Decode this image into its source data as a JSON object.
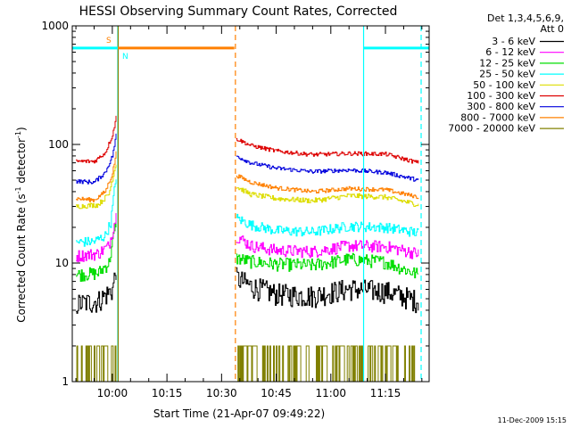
{
  "chart_data": {
    "type": "line",
    "title": "HESSI Observing Summary Count Rates, Corrected",
    "xlabel": "Start Time (21-Apr-07 09:49:22)",
    "ylabel_main": "Corrected Count Rate (s",
    "ylabel_sup1": "-1",
    "ylabel_mid": " detector",
    "ylabel_sup2": "-1",
    "ylabel_end": ")",
    "y_scale": "log",
    "ylim": [
      1,
      1000
    ],
    "xlim_minutes": [
      -11,
      87
    ],
    "x_ticks": [
      {
        "m": 0,
        "label": "10:00"
      },
      {
        "m": 15,
        "label": "10:15"
      },
      {
        "m": 30,
        "label": "10:30"
      },
      {
        "m": 45,
        "label": "10:45"
      },
      {
        "m": 60,
        "label": "11:00"
      },
      {
        "m": 75,
        "label": "11:15"
      }
    ],
    "y_ticks": [
      {
        "v": 1,
        "label": "1"
      },
      {
        "v": 10,
        "label": "10"
      },
      {
        "v": 100,
        "label": "100"
      },
      {
        "v": 1000,
        "label": "1000"
      }
    ],
    "legend": {
      "header1": "Det 1,3,4,5,6,9,",
      "header2": "Att 0",
      "placement": "right-outside"
    },
    "series": [
      {
        "name": "3 - 6 keV",
        "color": "#000000",
        "seg1": [
          [
            -10,
            4.5
          ],
          [
            -4,
            4.8
          ],
          [
            0,
            6
          ],
          [
            1,
            9
          ]
        ],
        "seg2": [
          [
            34,
            7.5
          ],
          [
            38,
            6.4
          ],
          [
            45,
            5.5
          ],
          [
            55,
            5.3
          ],
          [
            65,
            6.1
          ],
          [
            75,
            5.8
          ],
          [
            84,
            4.8
          ]
        ],
        "noise": 0.22
      },
      {
        "name": "6 - 12 keV",
        "color": "#ff00ff",
        "seg1": [
          [
            -10,
            11.5
          ],
          [
            -4,
            12
          ],
          [
            -1,
            14
          ],
          [
            1,
            25
          ]
        ],
        "seg2": [
          [
            34,
            17
          ],
          [
            38,
            14
          ],
          [
            45,
            12.8
          ],
          [
            55,
            12.5
          ],
          [
            65,
            14
          ],
          [
            75,
            13.8
          ],
          [
            84,
            12
          ]
        ],
        "noise": 0.12
      },
      {
        "name": "12 - 25 keV",
        "color": "#00dd00",
        "seg1": [
          [
            -10,
            8
          ],
          [
            -4,
            8.2
          ],
          [
            -1,
            10
          ],
          [
            1,
            22
          ]
        ],
        "seg2": [
          [
            34,
            11
          ],
          [
            38,
            10.3
          ],
          [
            45,
            9.8
          ],
          [
            55,
            9.6
          ],
          [
            65,
            10.8
          ],
          [
            75,
            10.2
          ],
          [
            84,
            8
          ]
        ],
        "noise": 0.13
      },
      {
        "name": "25 - 50 keV",
        "color": "#00ffff",
        "seg1": [
          [
            -10,
            15
          ],
          [
            -5,
            15.2
          ],
          [
            -2,
            17
          ],
          [
            -0.5,
            22
          ],
          [
            1,
            55
          ]
        ],
        "seg2": [
          [
            34,
            24
          ],
          [
            38,
            21
          ],
          [
            45,
            18.8
          ],
          [
            55,
            18.3
          ],
          [
            65,
            20.5
          ],
          [
            75,
            20
          ],
          [
            84,
            18
          ]
        ],
        "noise": 0.1
      },
      {
        "name": "50 - 100 keV",
        "color": "#dddd00",
        "seg1": [
          [
            -10,
            30
          ],
          [
            -4,
            31
          ],
          [
            -1,
            38
          ],
          [
            1,
            70
          ]
        ],
        "seg2": [
          [
            34,
            44
          ],
          [
            38,
            38
          ],
          [
            45,
            35
          ],
          [
            55,
            33.5
          ],
          [
            65,
            37
          ],
          [
            75,
            36
          ],
          [
            84,
            31
          ]
        ],
        "noise": 0.05
      },
      {
        "name": "100 - 300 keV",
        "color": "#dd0000",
        "seg1": [
          [
            -10,
            72
          ],
          [
            -5,
            72
          ],
          [
            -2,
            85
          ],
          [
            0,
            120
          ],
          [
            1,
            170
          ]
        ],
        "seg2": [
          [
            34,
            112
          ],
          [
            38,
            98
          ],
          [
            45,
            88
          ],
          [
            55,
            82
          ],
          [
            65,
            84
          ],
          [
            75,
            83
          ],
          [
            84,
            70
          ]
        ],
        "noise": 0.04
      },
      {
        "name": "300 - 800 keV",
        "color": "#0000dd",
        "seg1": [
          [
            -10,
            49
          ],
          [
            -5,
            48
          ],
          [
            -2,
            58
          ],
          [
            0,
            80
          ],
          [
            1,
            120
          ]
        ],
        "seg2": [
          [
            34,
            80
          ],
          [
            38,
            70
          ],
          [
            45,
            63
          ],
          [
            55,
            59
          ],
          [
            65,
            61
          ],
          [
            75,
            58
          ],
          [
            84,
            50
          ]
        ],
        "noise": 0.04
      },
      {
        "name": "800 - 7000 keV",
        "color": "#ff8000",
        "seg1": [
          [
            -10,
            35
          ],
          [
            -5,
            34
          ],
          [
            -2,
            40
          ],
          [
            0,
            57
          ],
          [
            1,
            85
          ]
        ],
        "seg2": [
          [
            34,
            55
          ],
          [
            38,
            48
          ],
          [
            45,
            43
          ],
          [
            55,
            40
          ],
          [
            65,
            42.5
          ],
          [
            75,
            41.5
          ],
          [
            84,
            36
          ]
        ],
        "noise": 0.04
      },
      {
        "name": "7000 - 20000 keV",
        "color": "#808000",
        "seg1": [
          [
            -10,
            1.5
          ],
          [
            1,
            1.6
          ]
        ],
        "seg2": [
          [
            34,
            1.5
          ],
          [
            84,
            1.5
          ]
        ],
        "noise": 0,
        "quantized": true
      }
    ],
    "bars": [
      {
        "label": "S",
        "color": "#ff8000",
        "start_m": 1.5,
        "end_m": 33.5,
        "v": 650
      },
      {
        "label": "N",
        "color": "#00ffff",
        "start_m": -11,
        "end_m": 1.5,
        "v": 650
      },
      {
        "label": "",
        "color": "#00ffff",
        "start_m": 69,
        "end_m": 87,
        "v": 650
      }
    ],
    "markers": [
      {
        "m": 1.5,
        "color": "#00ffff",
        "style": "solid"
      },
      {
        "m": 1.6,
        "color": "#808000",
        "style": "solid"
      },
      {
        "m": 33.8,
        "color": "#ff8000",
        "style": "dash"
      },
      {
        "m": 69,
        "color": "#00ffff",
        "style": "solid"
      },
      {
        "m": 84.8,
        "color": "#00ffff",
        "style": "dash"
      }
    ]
  },
  "footer": {
    "timestamp": "11-Dec-2009 15:15"
  }
}
